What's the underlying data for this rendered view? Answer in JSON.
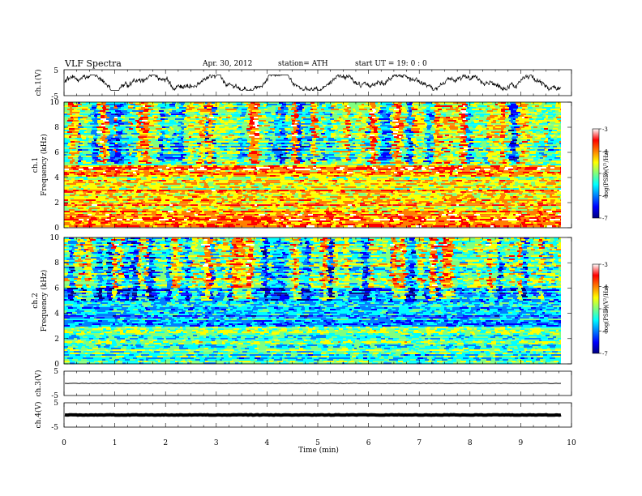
{
  "header": {
    "title": "VLF Spectra",
    "date": "Apr. 30, 2012",
    "station": "station= ATH",
    "start": "start  UT =   19: 0  : 0"
  },
  "chart_data": [
    {
      "type": "line",
      "name": "channel 1 waveform",
      "ylabel": "ch.1(V)",
      "yticks": [
        "5",
        "-5"
      ],
      "ylim": [
        -5,
        5
      ],
      "xlim": [
        0,
        10
      ],
      "value_range_approx": [
        -3,
        3
      ],
      "data_extent_min": 9.8
    },
    {
      "type": "heatmap",
      "name": "channel 1 spectrogram",
      "ylabel_top": "ch.1",
      "ylabel": "Frequency  (kHz)",
      "yticks": [
        "0",
        "2",
        "4",
        "6",
        "8",
        "10"
      ],
      "ylim_khz": [
        0,
        10
      ],
      "colorbar": {
        "label": "log(PSD)(V²/Hz)",
        "ticks": [
          "-3",
          "-4",
          "-5",
          "-6",
          "-7"
        ],
        "range": [
          -7,
          -3
        ]
      },
      "dominant_level_by_band": [
        {
          "khz": [
            0,
            1
          ],
          "level": -3.7
        },
        {
          "khz": [
            1,
            3
          ],
          "level": -4.2
        },
        {
          "khz": [
            3,
            4
          ],
          "level": -4.6
        },
        {
          "khz": [
            4,
            5
          ],
          "level": -3.9
        },
        {
          "khz": [
            5,
            7
          ],
          "level": -5.0
        },
        {
          "khz": [
            7,
            10
          ],
          "level": -4.8
        }
      ]
    },
    {
      "type": "heatmap",
      "name": "channel 2 spectrogram",
      "ylabel_top": "ch.2",
      "ylabel": "Frequency  (kHz)",
      "yticks": [
        "0",
        "2",
        "4",
        "6",
        "8",
        "10"
      ],
      "ylim_khz": [
        0,
        10
      ],
      "colorbar": {
        "label": "log(PSD)(V²/Hz)",
        "ticks": [
          "-3",
          "-4",
          "-5",
          "-6",
          "-7"
        ],
        "range": [
          -7,
          -3
        ]
      },
      "dominant_level_by_band": [
        {
          "khz": [
            0,
            1
          ],
          "level": -5.3
        },
        {
          "khz": [
            1,
            3
          ],
          "level": -5.2
        },
        {
          "khz": [
            3,
            6
          ],
          "level": -5.8
        },
        {
          "khz": [
            6,
            10
          ],
          "level": -5.1
        }
      ]
    },
    {
      "type": "line",
      "name": "channel 3 waveform",
      "ylabel": "ch.3(V)",
      "yticks": [
        "5",
        "-5"
      ],
      "ylim": [
        -5,
        5
      ],
      "value_approx": 0
    },
    {
      "type": "line",
      "name": "channel 4 waveform",
      "ylabel": "ch.4(V)",
      "yticks": [
        "5",
        "-5"
      ],
      "ylim": [
        -5,
        5
      ],
      "value_approx": 0
    },
    {
      "type": "axis",
      "name": "time axis",
      "xlabel": "Time  (min)",
      "xticks": [
        "0",
        "1",
        "2",
        "3",
        "4",
        "5",
        "6",
        "7",
        "8",
        "9",
        "10"
      ],
      "xlim": [
        0,
        10
      ]
    }
  ],
  "colors": {
    "jet": [
      "#00007f",
      "#0000ff",
      "#007fff",
      "#00ffff",
      "#7fff7f",
      "#ffff00",
      "#ff7f00",
      "#ff0000",
      "#ffffff"
    ],
    "waveform": "#000000"
  }
}
